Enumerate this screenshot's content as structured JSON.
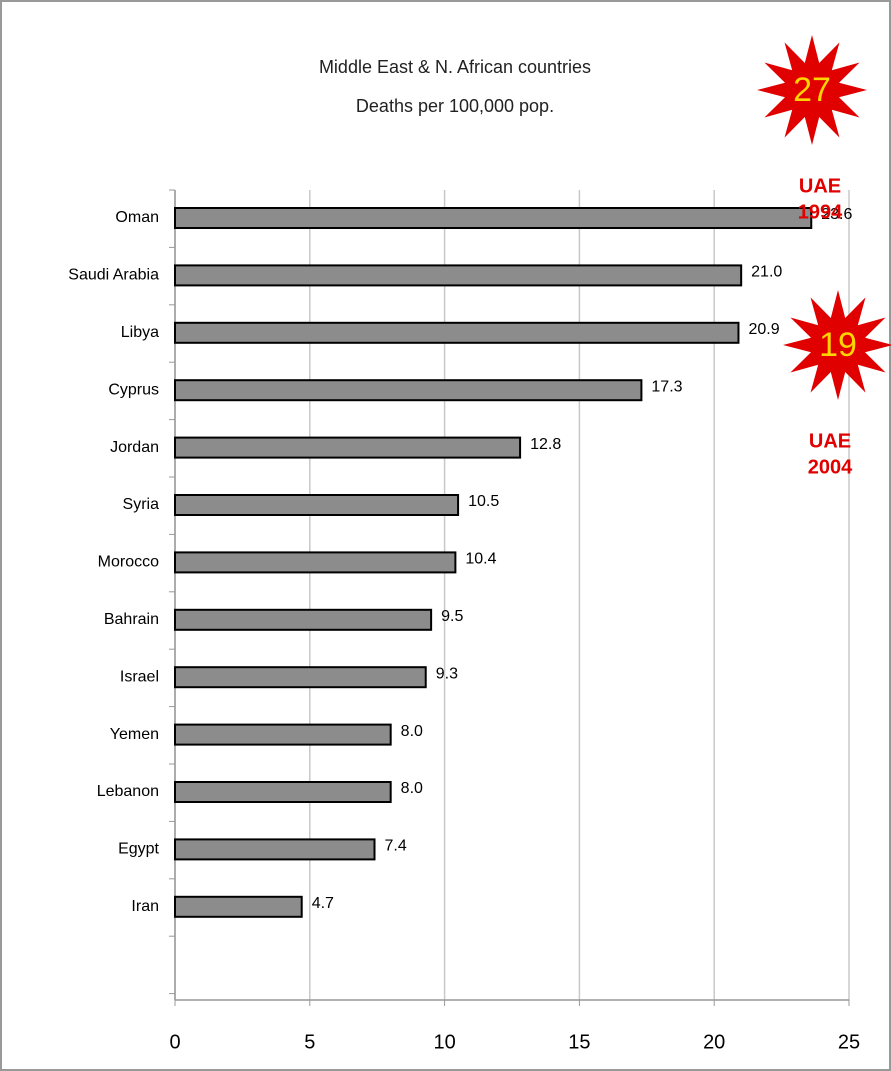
{
  "chart_data": {
    "type": "bar",
    "orientation": "horizontal",
    "title": [
      "Middle East & N. African countries",
      "Deaths per 100,000 pop."
    ],
    "categories": [
      "Oman",
      "Saudi Arabia",
      "Libya",
      "Cyprus",
      "Jordan",
      "Syria",
      "Morocco",
      "Bahrain",
      "Israel",
      "Yemen",
      "Lebanon",
      "Egypt",
      "Iran"
    ],
    "values": [
      23.6,
      21,
      20.9,
      17.3,
      12.8,
      10.5,
      10.4,
      9.5,
      9.3,
      8,
      8,
      7.4,
      4.7
    ],
    "value_labels": [
      "23.6",
      "21.0",
      "20.9",
      "17.3",
      "12.8",
      "10.5",
      "10.4",
      "9.5",
      "9.3",
      "8.0",
      "8.0",
      "7.4",
      "4.7"
    ],
    "color": "#8c8c8c",
    "xlim": [
      0,
      25
    ],
    "xticks": [
      0,
      5,
      10,
      15,
      20,
      25
    ],
    "grid": true,
    "annotations": [
      {
        "badge": "27",
        "label": [
          "UAE",
          "1994"
        ]
      },
      {
        "badge": "19",
        "label": [
          "UAE",
          "2004"
        ]
      }
    ]
  }
}
